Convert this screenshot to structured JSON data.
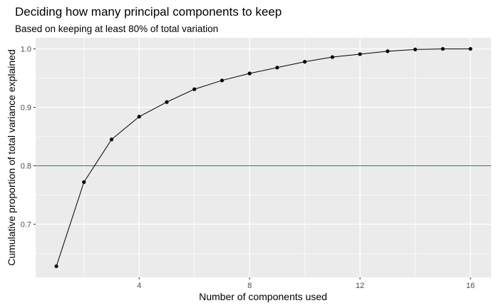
{
  "chart_data": {
    "type": "line",
    "title": "Deciding how many principal components to keep",
    "subtitle": "Based on keeping at least 80% of total variation",
    "xlabel": "Number of components used",
    "ylabel": "Cumulative proportion of total variance explained",
    "x": [
      1,
      2,
      3,
      4,
      5,
      6,
      7,
      8,
      9,
      10,
      11,
      12,
      13,
      14,
      15,
      16
    ],
    "series": [
      {
        "values": [
          0.628,
          0.772,
          0.845,
          0.884,
          0.909,
          0.931,
          0.946,
          0.958,
          0.968,
          0.978,
          0.986,
          0.991,
          0.996,
          0.999,
          1.0,
          1.0
        ]
      }
    ],
    "xlim": [
      0.25,
      16.75
    ],
    "ylim": [
      0.609,
      1.019
    ],
    "xticks": [
      4,
      8,
      12,
      16
    ],
    "xtick_labels": [
      "4",
      "8",
      "12",
      "16"
    ],
    "yticks": [
      0.7,
      0.8,
      0.9,
      1.0
    ],
    "ytick_labels": [
      "0.7",
      "0.8",
      "0.9",
      "1.0"
    ],
    "reference_line": {
      "y": 0.8,
      "color": "#228B22"
    },
    "grid": true,
    "colors": {
      "panel_background": "#EBEBEB",
      "grid_line": "#FFFFFF",
      "series_line": "#000000",
      "point": "#000000"
    }
  }
}
